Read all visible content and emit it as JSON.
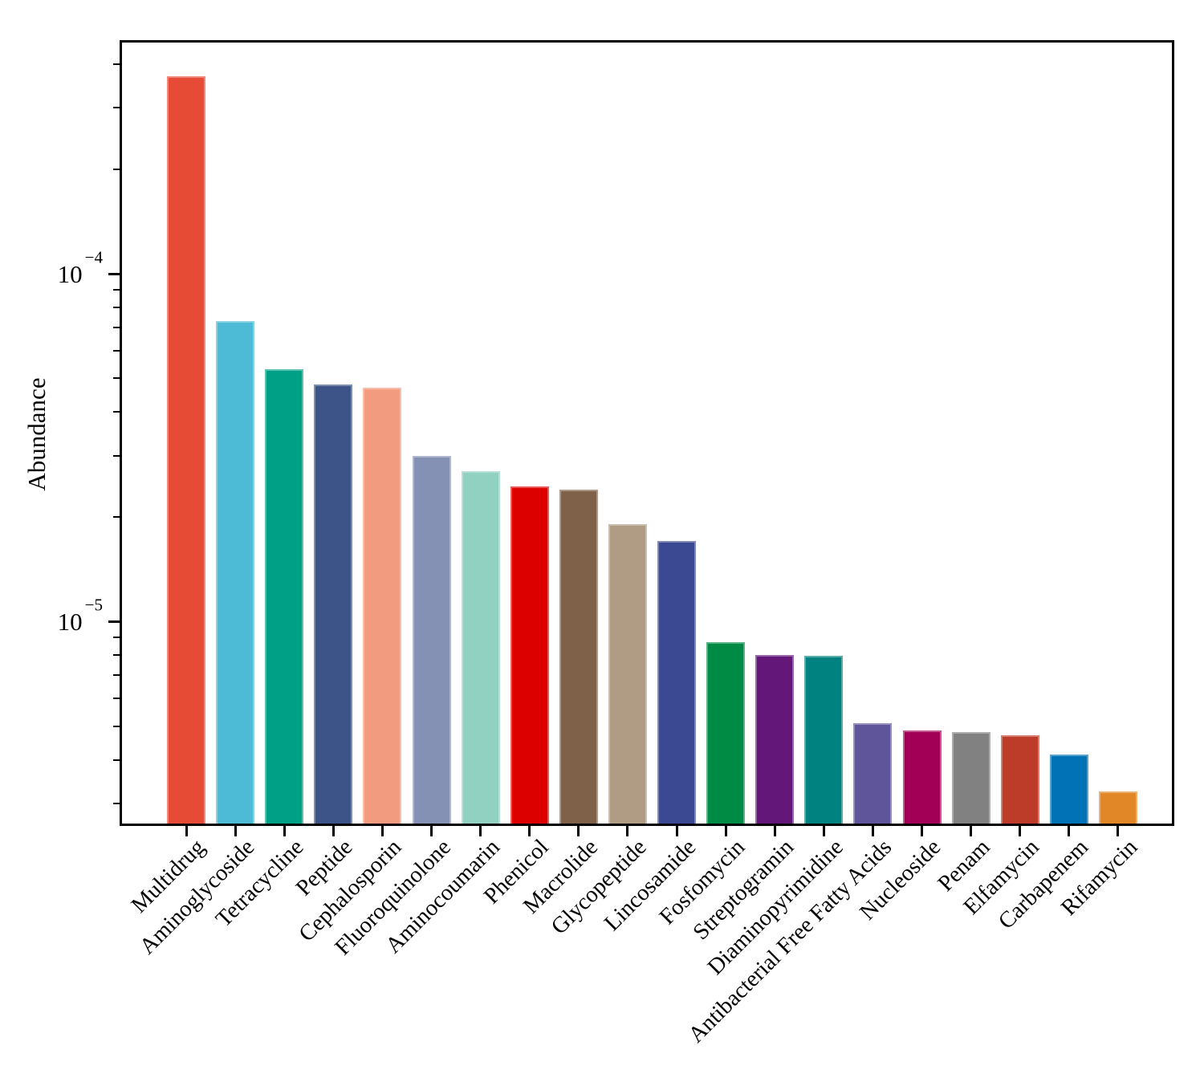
{
  "figure": {
    "background": "#ffffff"
  },
  "chart_data": {
    "type": "bar",
    "title": "",
    "xlabel": "",
    "ylabel": "Abundance",
    "yscale": "log",
    "ylim": [
      2.58e-06,
      0.00047
    ],
    "grid": false,
    "legend": "none",
    "categories": [
      "Multidrug",
      "Aminoglycoside",
      "Tetracycline",
      "Peptide",
      "Cephalosporin",
      "Fluoroquinolone",
      "Aminocoumarin",
      "Phenicol",
      "Macrolide",
      "Glycopeptide",
      "Lincosamide",
      "Fosfomycin",
      "Streptogramin",
      "Diaminopyrimidine",
      "Antibacterial Free Fatty Acids",
      "Nucleoside",
      "Penam",
      "Elfamycin",
      "Carbapenem",
      "Rifamycin"
    ],
    "values": [
      0.00037,
      7.3e-05,
      5.3e-05,
      4.8e-05,
      4.7e-05,
      3e-05,
      2.7e-05,
      2.45e-05,
      2.4e-05,
      1.9e-05,
      1.7e-05,
      8.7e-06,
      8e-06,
      7.95e-06,
      5.1e-06,
      4.85e-06,
      4.8e-06,
      4.7e-06,
      4.15e-06,
      3.25e-06
    ],
    "colors": [
      "#E64B35",
      "#4DBBD5",
      "#00A087",
      "#3C5488",
      "#F39B7F",
      "#8491B4",
      "#91D1C2",
      "#DC0000",
      "#7E6148",
      "#B09C85",
      "#3B4992",
      "#008B45",
      "#631879",
      "#008280",
      "#5F559B",
      "#A20056",
      "#808180",
      "#BC3C29",
      "#0072B5",
      "#E18727"
    ],
    "yticks": [
      {
        "value": 0.0001,
        "base": "10",
        "exp": "−4"
      },
      {
        "value": 1e-05,
        "base": "10",
        "exp": "−5"
      }
    ]
  }
}
